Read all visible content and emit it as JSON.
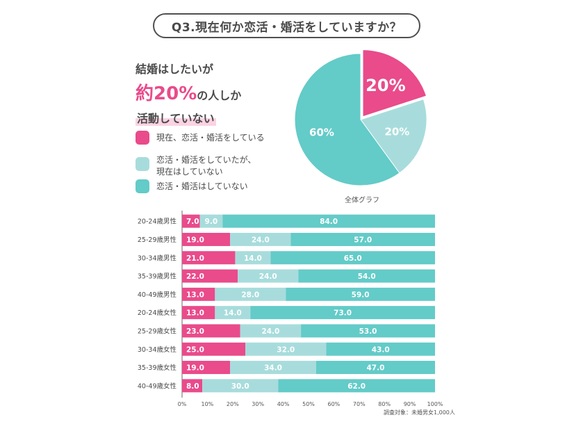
{
  "title": "Q3.現在何か恋活・婚活をしていますか？",
  "headline": {
    "line1": "結婚はしたいが",
    "line2_prefix": "約",
    "line2_highlight": "20%",
    "line2_suffix": "の人しか",
    "line3": "活動していない"
  },
  "legend": [
    {
      "label": "現在、恋活・婚活をしている",
      "color": "#e94b8b"
    },
    {
      "label": "恋活・婚活をしていたが、\n現在はしていない",
      "color": "#a8dcdc"
    },
    {
      "label": "恋活・婚活はしていない",
      "color": "#63cbc8"
    }
  ],
  "pie_caption": "全体グラフ",
  "note": "調査対象：未婚男女1,000人",
  "chart_data": [
    {
      "type": "pie",
      "title": "全体グラフ",
      "labels": [
        "現在、恋活・婚活をしている",
        "恋活・婚活をしていたが、現在はしていない",
        "恋活・婚活はしていない"
      ],
      "values": [
        20,
        20,
        60
      ],
      "value_labels": [
        "20%",
        "20%",
        "60%"
      ],
      "colors": [
        "#e94b8b",
        "#a8dcdc",
        "#63cbc8"
      ]
    },
    {
      "type": "bar",
      "orientation": "horizontal",
      "stacked": true,
      "categories": [
        "20-24歳男性",
        "25-29歳男性",
        "30-34歳男性",
        "35-39歳男性",
        "40-49歳男性",
        "20-24歳女性",
        "25-29歳女性",
        "30-34歳女性",
        "35-39歳女性",
        "40-49歳女性"
      ],
      "series": [
        {
          "name": "現在、恋活・婚活をしている",
          "color": "#e94b8b",
          "values": [
            7.0,
            19.0,
            21.0,
            22.0,
            13.0,
            13.0,
            23.0,
            25.0,
            19.0,
            8.0
          ]
        },
        {
          "name": "恋活・婚活をしていたが、現在はしていない",
          "color": "#a8dcdc",
          "values": [
            9.0,
            24.0,
            14.0,
            24.0,
            28.0,
            14.0,
            24.0,
            32.0,
            34.0,
            30.0
          ]
        },
        {
          "name": "恋活・婚活はしていない",
          "color": "#63cbc8",
          "values": [
            84.0,
            57.0,
            65.0,
            54.0,
            59.0,
            73.0,
            53.0,
            43.0,
            47.0,
            62.0
          ]
        }
      ],
      "xlim": [
        0,
        100
      ],
      "xticks": [
        "0%",
        "10%",
        "20%",
        "30%",
        "40%",
        "50%",
        "60%",
        "70%",
        "80%",
        "90%",
        "100%"
      ]
    }
  ]
}
